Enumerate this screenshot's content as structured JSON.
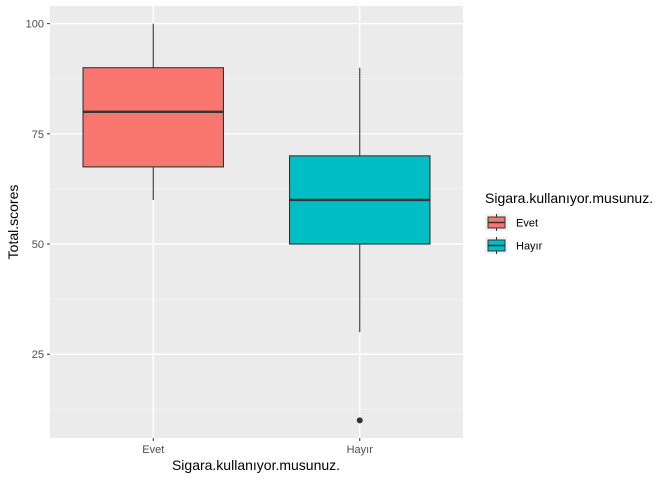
{
  "chart_data": {
    "type": "boxplot",
    "xlabel": "Sigara.kullanıyor.musunuz.",
    "ylabel": "Total.scores",
    "ylim": [
      6,
      104
    ],
    "yticks": [
      25,
      50,
      75,
      100
    ],
    "categories": [
      "Evet",
      "Hayır"
    ],
    "boxes": [
      {
        "category": "Evet",
        "whisker_low": 60,
        "q1": 67.5,
        "median": 80,
        "q3": 90,
        "whisker_high": 100,
        "outliers": [],
        "color": "#F8766D"
      },
      {
        "category": "Hayır",
        "whisker_low": 30,
        "q1": 50,
        "median": 60,
        "q3": 70,
        "whisker_high": 90,
        "outliers": [
          10
        ],
        "color": "#00BFC4"
      }
    ],
    "legend": {
      "title": "Sigara.kullanıyor.musunuz.",
      "position": "right",
      "entries": [
        {
          "label": "Evet",
          "color": "#F8766D"
        },
        {
          "label": "Hayır",
          "color": "#00BFC4"
        }
      ]
    },
    "grid": true,
    "panel_background": "#EBEBEB"
  }
}
